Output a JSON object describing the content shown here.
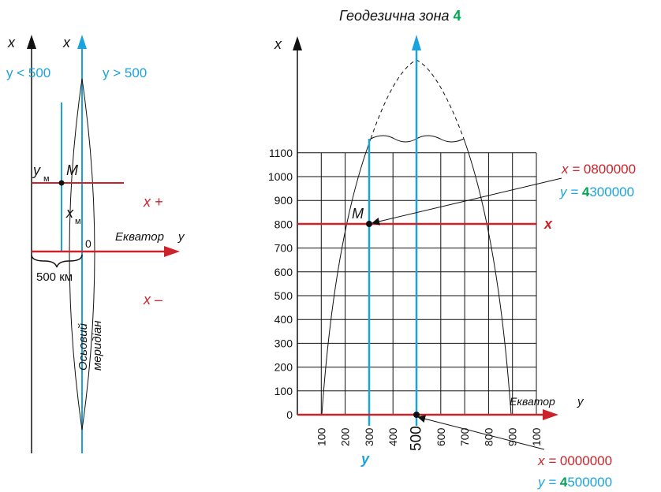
{
  "colors": {
    "red": "#cc2229",
    "blue": "#1aa3dc",
    "green": "#00a651",
    "black": "#111111"
  },
  "left": {
    "axis_x_outer": "x",
    "axis_x_inner": "x",
    "y_less": "y < 500",
    "y_greater": "y > 500",
    "y_m": "y",
    "y_m_sub": "м",
    "point_m": "M",
    "x_m": "x",
    "x_m_sub": "м",
    "x_plus": "x +",
    "x_minus": "x –",
    "origin": "0",
    "equator": "Екватор",
    "equator_y": "y",
    "km": "500 км",
    "meridian_line1": "Осьовий",
    "meridian_line2": "меридіан"
  },
  "right": {
    "title_prefix": "Геодезична зона",
    "zone_number": "4",
    "axis_x": "x",
    "point_m": "M",
    "equator": "Екватор",
    "equator_y": "y",
    "x_red": "x",
    "y_blue": "y",
    "top_x_eq": "x = ",
    "top_x_val": "0800000",
    "top_y_eq": "y = ",
    "top_y_zone": "4",
    "top_y_val": "300000",
    "bot_x_eq": "x = ",
    "bot_x_val": "0000000",
    "bot_y_eq": "y = ",
    "bot_y_zone": "4",
    "bot_y_val": "500000"
  },
  "chart_data": {
    "type": "grid",
    "y_ticks": [
      "0",
      "100",
      "200",
      "300",
      "400",
      "500",
      "600",
      "700",
      "800",
      "900",
      "1000",
      "1100"
    ],
    "x_ticks": [
      "100",
      "200",
      "300",
      "400",
      "500",
      "600",
      "700",
      "800",
      "900",
      "100"
    ],
    "point_M": {
      "x": 300,
      "y": 800
    }
  }
}
